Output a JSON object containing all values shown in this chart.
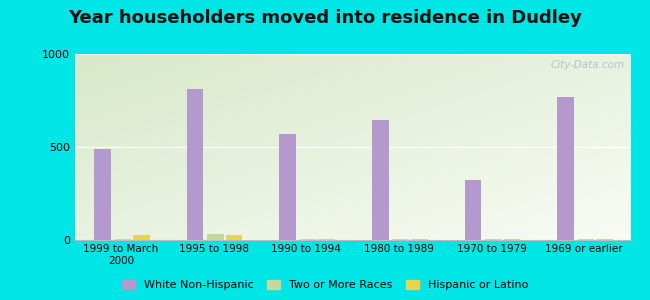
{
  "title": "Year householders moved into residence in Dudley",
  "categories": [
    "1999 to March\n2000",
    "1995 to 1998",
    "1990 to 1994",
    "1980 to 1989",
    "1970 to 1979",
    "1969 or earlier"
  ],
  "series": {
    "White Non-Hispanic": [
      490,
      810,
      570,
      645,
      325,
      770
    ],
    "Two or More Races": [
      8,
      30,
      5,
      5,
      5,
      3
    ],
    "Hispanic or Latino": [
      28,
      25,
      3,
      3,
      3,
      3
    ]
  },
  "colors": {
    "White Non-Hispanic": "#b399cc",
    "Two or More Races": "#c8d89a",
    "Hispanic or Latino": "#e8d44d"
  },
  "ylim": [
    0,
    1000
  ],
  "yticks": [
    0,
    500,
    1000
  ],
  "bg_left_color": "#d8e8c8",
  "bg_right_color": "#f0f5e8",
  "bg_top_color": "#e8f2e0",
  "bg_bottom_color": "#f8fbf4",
  "outer_bg": "#00e5e5",
  "watermark": "City-Data.com",
  "bar_width": 0.18,
  "title_fontsize": 13
}
